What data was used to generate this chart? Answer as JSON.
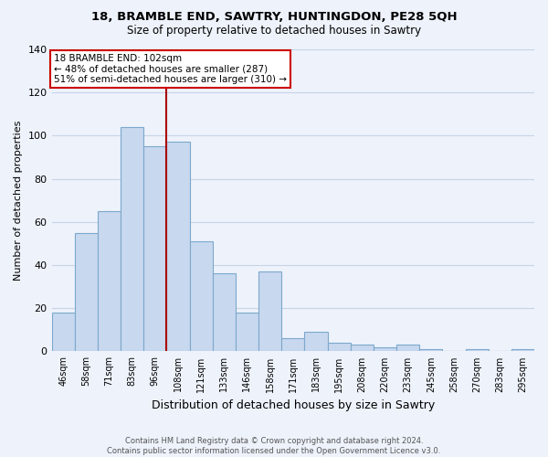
{
  "title": "18, BRAMBLE END, SAWTRY, HUNTINGDON, PE28 5QH",
  "subtitle": "Size of property relative to detached houses in Sawtry",
  "xlabel": "Distribution of detached houses by size in Sawtry",
  "ylabel": "Number of detached properties",
  "bar_labels": [
    "46sqm",
    "58sqm",
    "71sqm",
    "83sqm",
    "96sqm",
    "108sqm",
    "121sqm",
    "133sqm",
    "146sqm",
    "158sqm",
    "171sqm",
    "183sqm",
    "195sqm",
    "208sqm",
    "220sqm",
    "233sqm",
    "245sqm",
    "258sqm",
    "270sqm",
    "283sqm",
    "295sqm"
  ],
  "bar_values": [
    18,
    55,
    65,
    104,
    95,
    97,
    51,
    36,
    18,
    37,
    6,
    9,
    4,
    3,
    2,
    3,
    1,
    0,
    1,
    0,
    1
  ],
  "bar_color": "#c8d8ee",
  "bar_edge_color": "#7da8cc",
  "highlight_line_color": "#aa0000",
  "annotation_text": "18 BRAMBLE END: 102sqm\n← 48% of detached houses are smaller (287)\n51% of semi-detached houses are larger (310) →",
  "annotation_box_color": "#ffffff",
  "annotation_box_edge": "#cc0000",
  "background_color": "#edf2fb",
  "grid_color": "#c8d4e8",
  "ylim": [
    0,
    140
  ],
  "footnote": "Contains HM Land Registry data © Crown copyright and database right 2024.\nContains public sector information licensed under the Open Government Licence v3.0."
}
